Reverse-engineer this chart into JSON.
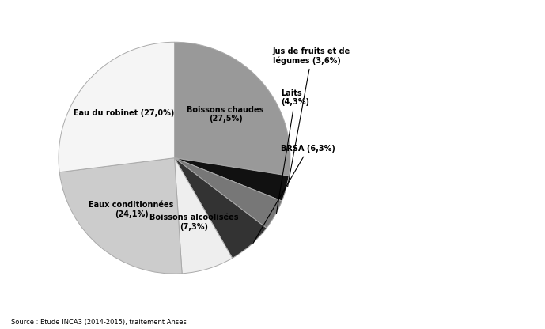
{
  "labels_inner": {
    "0": "Boissons chaudes\n(27,5%)",
    "4": "Boissons alcoolisées\n(7,3%)",
    "5": "Eaux conditionnées\n(24,1%)",
    "6": "Eau du robinet (27,0%)"
  },
  "labels_outer": {
    "1": "Jus de fruits et de\nlégumes (3,6%)",
    "2": "Laits\n(4,3%)",
    "3": "BRSA (6,3%)"
  },
  "labels_all": [
    "Boissons chaudes\n(27,5%)",
    "Jus de fruits et de\nlégumes (3,6%)",
    "Laits\n(4,3%)",
    "BRSA (6,3%)",
    "Boissons alcoolisées\n(7,3%)",
    "Eaux conditionnées\n(24,1%)",
    "Eau du robinet (27,0%)"
  ],
  "values": [
    27.5,
    3.6,
    4.3,
    6.3,
    7.3,
    24.1,
    27.0
  ],
  "colors": [
    "#999999",
    "#111111",
    "#777777",
    "#333333",
    "#eeeeee",
    "#cccccc",
    "#f5f5f5"
  ],
  "edge_color": "#aaaaaa",
  "source_text": "Source : Etude INCA3 (2014-2015), traitement Anses",
  "background_color": "#ffffff",
  "startangle": 90,
  "fontsize": 7.0
}
